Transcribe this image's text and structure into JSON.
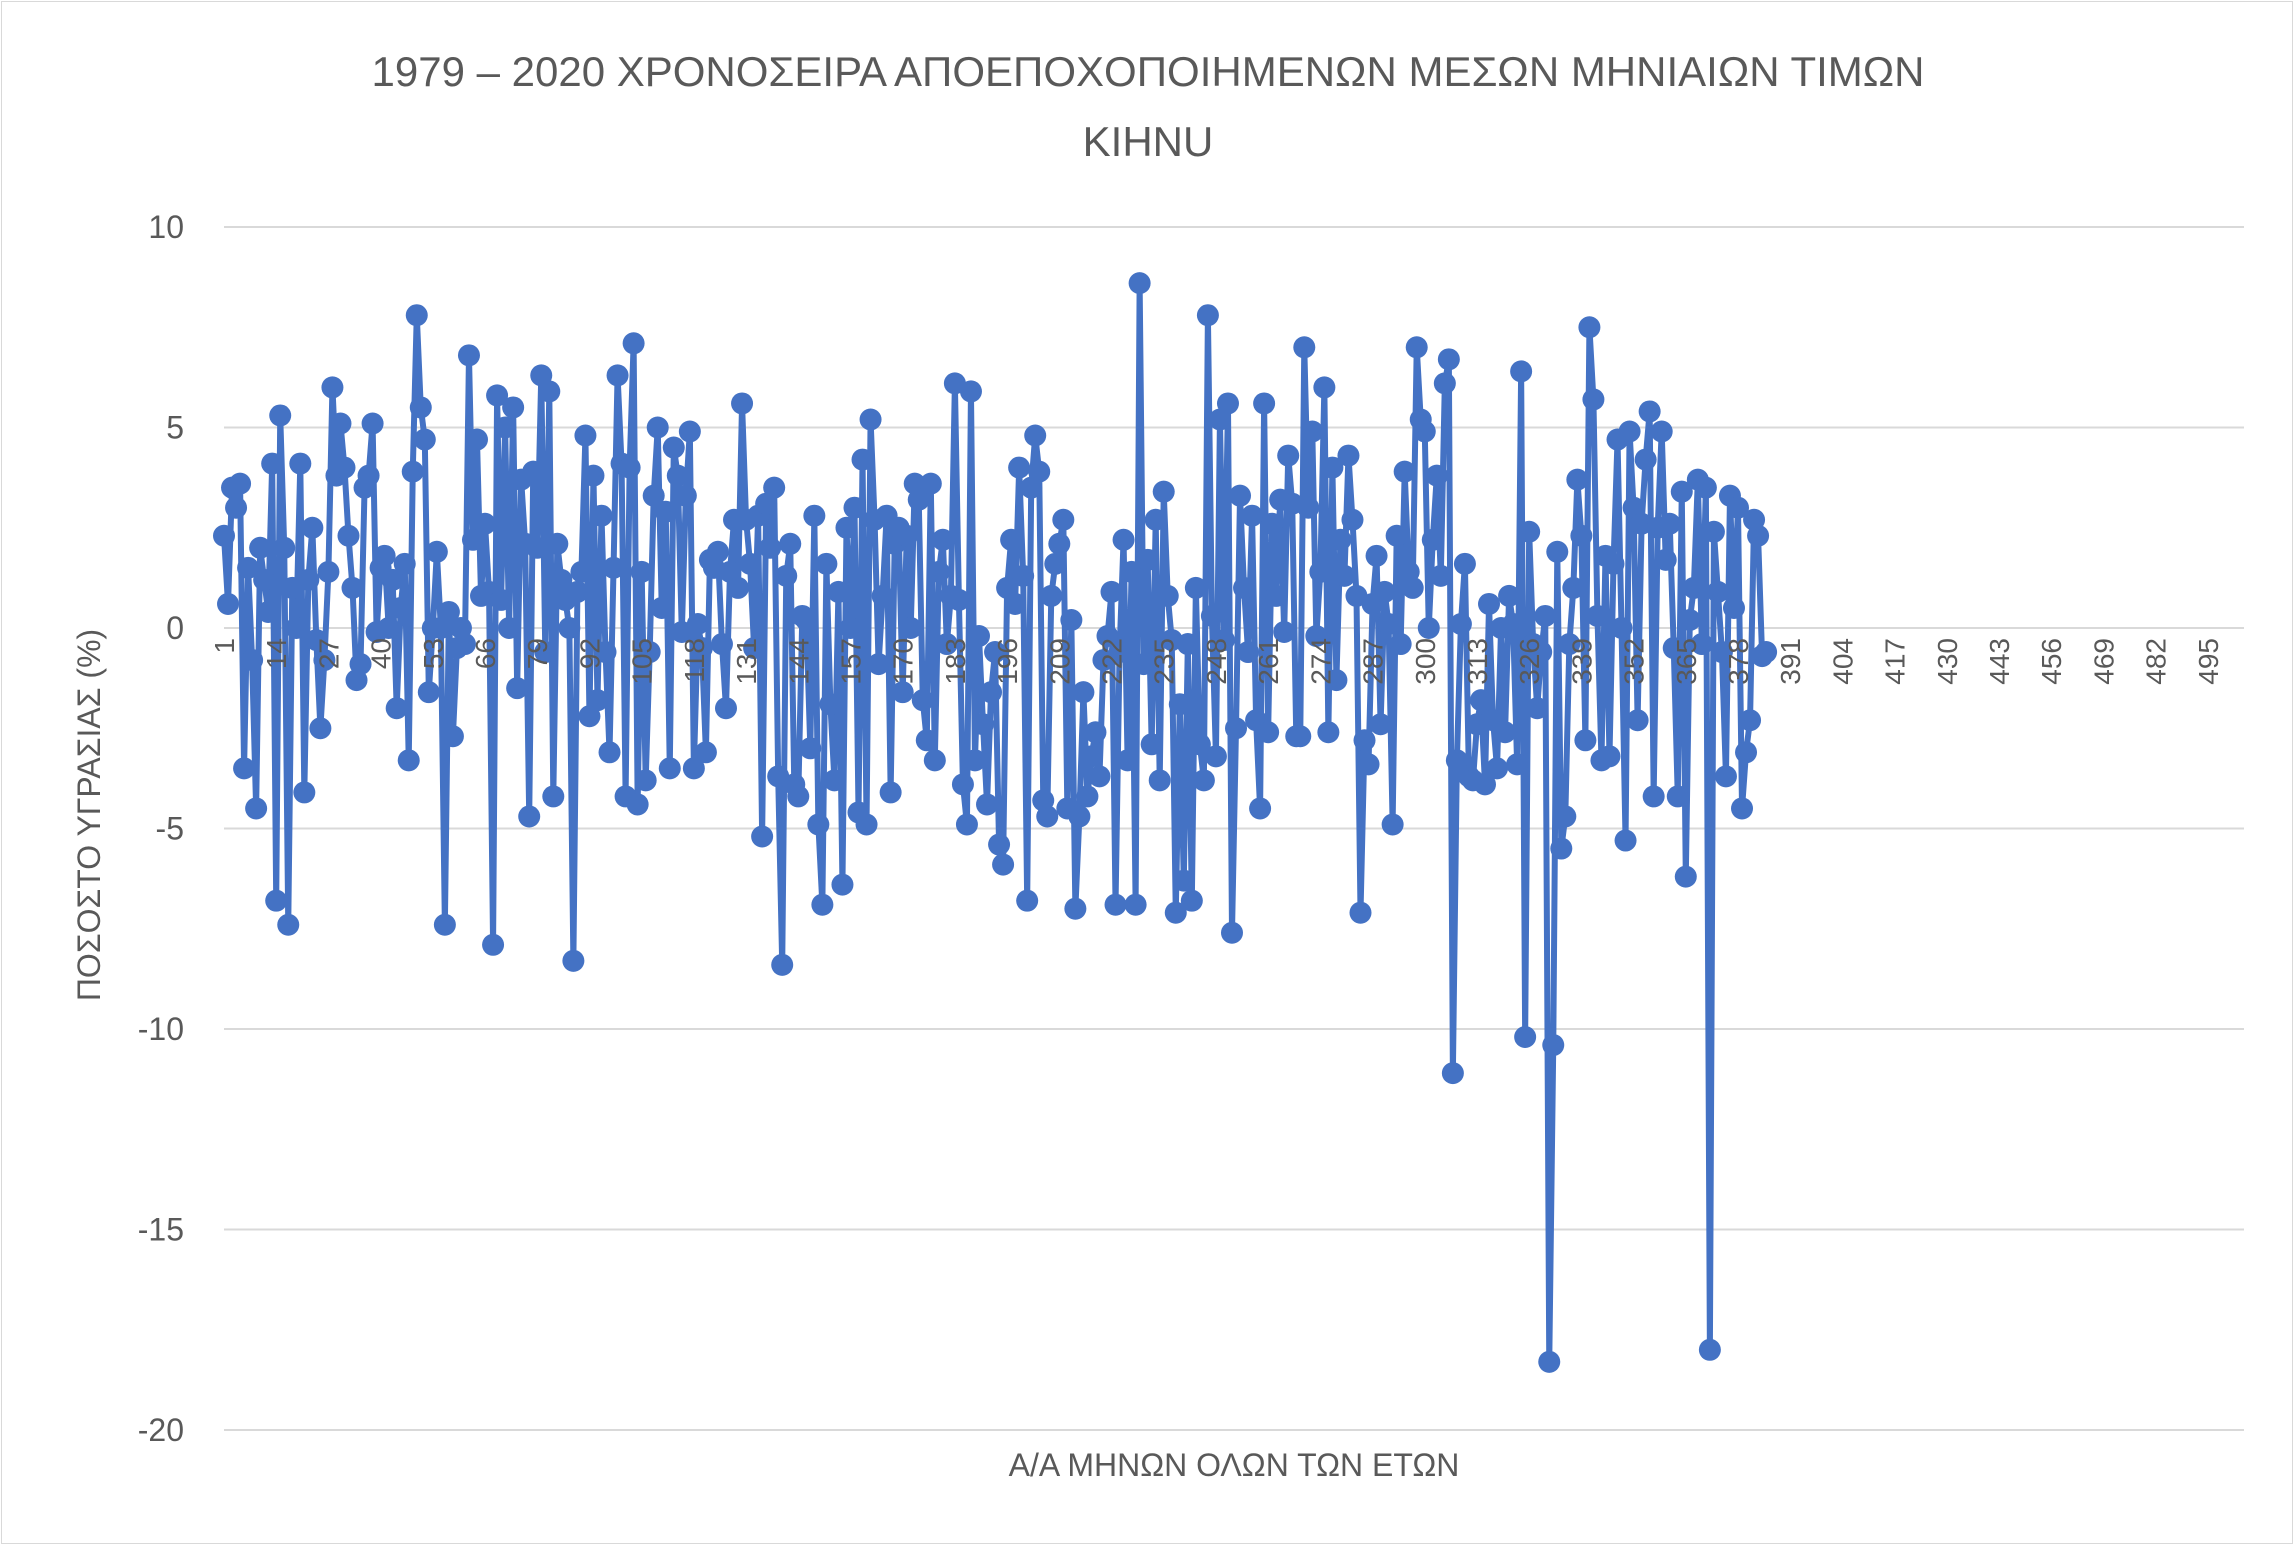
{
  "chart_data": {
    "type": "line",
    "title_lines": [
      "1979 – 2020 ΧΡΟΝΟΣΕΙΡΑ ΑΠΟΕΠΟΧΟΠΟΙΗΜΕΝΩΝ ΜΕΣΩΝ ΜΗΝΙΑΙΩΝ ΤΙΜΩΝ",
      "ΚΙΗΝU"
    ],
    "xlabel": "Α/Α ΜΗΝΩΝ ΟΛΩΝ ΤΩΝ ΕΤΩΝ",
    "ylabel": "ΠΟΣΟΣΤΟ ΥΓΡΑΣΙΑΣ (%)",
    "ylim": [
      -20,
      10
    ],
    "yticks": [
      10,
      5,
      0,
      -5,
      -10,
      -15,
      -20
    ],
    "ytick_labels": [
      "10",
      "5",
      "0",
      "-5",
      "-10",
      "-15",
      "-20"
    ],
    "xlim": [
      1,
      504
    ],
    "xticks": [
      1,
      14,
      27,
      40,
      53,
      66,
      79,
      92,
      105,
      118,
      131,
      144,
      157,
      170,
      183,
      196,
      209,
      222,
      235,
      248,
      261,
      274,
      287,
      300,
      313,
      326,
      339,
      352,
      365,
      378,
      391,
      404,
      417,
      430,
      443,
      456,
      469,
      482,
      495
    ],
    "xtick_labels": [
      "1",
      "14",
      "27",
      "40",
      "53",
      "66",
      "79",
      "92",
      "105",
      "118",
      "131",
      "144",
      "157",
      "170",
      "183",
      "196",
      "209",
      "222",
      "235",
      "248",
      "261",
      "274",
      "287",
      "300",
      "313",
      "326",
      "339",
      "352",
      "365",
      "378",
      "391",
      "404",
      "417",
      "430",
      "443",
      "456",
      "469",
      "482",
      "495"
    ],
    "grid": "horizontal",
    "legend": "none",
    "series_color": "#4472C4",
    "values": [
      2.3,
      0.6,
      3.5,
      3.0,
      3.6,
      -3.5,
      1.5,
      -0.8,
      -4.5,
      2.0,
      1.2,
      0.4,
      4.1,
      -6.8,
      5.3,
      2.0,
      -7.4,
      1.0,
      0.0,
      4.1,
      -4.1,
      1.2,
      2.5,
      -0.3,
      -2.5,
      -0.8,
      1.4,
      6.0,
      3.8,
      5.1,
      4.0,
      2.3,
      1.0,
      -1.3,
      -0.9,
      3.5,
      3.8,
      5.1,
      -0.1,
      1.5,
      1.8,
      0.0,
      1.2,
      -2.0,
      0.5,
      1.6,
      -3.3,
      3.9,
      7.8,
      5.5,
      4.7,
      -1.6,
      0.0,
      1.9,
      0.0,
      -7.4,
      0.4,
      -2.7,
      -0.5,
      0.0,
      -0.4,
      6.8,
      2.2,
      4.7,
      0.8,
      2.6,
      0.9,
      -7.9,
      5.8,
      0.7,
      5.0,
      0.0,
      5.5,
      -1.5,
      3.7,
      2.1,
      -4.7,
      3.9,
      2.0,
      6.3,
      -0.6,
      5.9,
      -4.2,
      2.1,
      1.2,
      0.7,
      0.0,
      -8.3,
      0.9,
      1.4,
      4.8,
      -2.2,
      3.8,
      -1.8,
      2.8,
      -0.6,
      -3.1,
      1.5,
      6.3,
      4.1,
      -4.2,
      4.0,
      7.1,
      -4.4,
      1.4,
      -3.8,
      -0.6,
      3.3,
      5.0,
      0.5,
      2.9,
      -3.5,
      4.5,
      3.8,
      -0.1,
      3.3,
      4.9,
      -3.5,
      0.1,
      -0.5,
      -3.1,
      1.7,
      1.5,
      1.9,
      -0.4,
      -2.0,
      1.4,
      2.7,
      1.0,
      5.6,
      2.7,
      1.6,
      -0.5,
      2.8,
      -5.2,
      3.1,
      2.0,
      3.5,
      -3.7,
      -8.4,
      1.3,
      2.1,
      -3.9,
      -4.2,
      0.3,
      0.2,
      -3.0,
      2.8,
      -4.9,
      -6.9,
      1.6,
      -1.9,
      -3.8,
      0.9,
      -6.4,
      2.5,
      0.0,
      3.0,
      -4.6,
      4.2,
      -4.9,
      5.2,
      2.7,
      -0.9,
      0.8,
      2.8,
      -4.1,
      2.1,
      2.5,
      -1.6,
      2.3,
      0.0,
      3.6,
      3.2,
      -1.8,
      -2.8,
      3.6,
      -3.3,
      1.4,
      2.2,
      -0.4,
      0.8,
      6.1,
      0.7,
      -3.9,
      -4.9,
      5.9,
      -3.3,
      -0.2,
      -2.4,
      -4.4,
      -1.6,
      -0.6,
      -5.4,
      -5.9,
      1.0,
      2.2,
      0.6,
      4.0,
      1.3,
      -6.8,
      3.5,
      4.8,
      3.9,
      -4.3,
      -4.7,
      0.8,
      1.6,
      2.1,
      2.7,
      -4.5,
      0.2,
      -7.0,
      -4.7,
      -1.6,
      -4.2,
      -3.2,
      -2.6,
      -3.7,
      -0.8,
      -0.2,
      0.9,
      -6.9,
      -0.6,
      2.2,
      -3.3,
      1.4,
      -6.9,
      8.6,
      -0.9,
      1.7,
      -2.9,
      2.7,
      -3.8,
      3.4,
      0.8,
      -0.3,
      -7.1,
      -1.9,
      -6.3,
      -0.4,
      -6.8,
      1.0,
      -2.9,
      -3.8,
      7.8,
      0.3,
      -3.2,
      5.2,
      -0.3,
      5.6,
      -7.6,
      -2.5,
      3.3,
      1.0,
      -0.6,
      2.8,
      -2.3,
      -4.5,
      5.6,
      -2.6,
      2.6,
      0.8,
      3.2,
      -0.1,
      4.3,
      3.1,
      -2.7,
      -2.7,
      7.0,
      3.0,
      4.9,
      -0.2,
      1.4,
      6.0,
      -2.6,
      4.0,
      -1.3,
      2.2,
      1.3,
      4.3,
      2.7,
      0.8,
      -7.1,
      -2.8,
      -3.4,
      0.6,
      1.8,
      -2.4,
      0.9,
      0.1,
      -4.9,
      2.3,
      -0.4,
      3.9,
      1.4,
      1.0,
      7.0,
      5.2,
      4.9,
      0.0,
      2.2,
      3.8,
      1.3,
      6.1,
      6.7,
      -11.1,
      -3.3,
      0.1,
      1.6,
      -3.7,
      -3.8,
      -2.4,
      -1.8,
      -3.9,
      0.6,
      -2.3,
      -3.5,
      0.0,
      -2.6,
      0.8,
      0.1,
      -3.4,
      6.4,
      -10.2,
      2.4,
      -0.4,
      -2.0,
      -0.6,
      0.3,
      -18.3,
      -10.4,
      1.9,
      -5.5,
      -4.7,
      -0.4,
      1.0,
      3.7,
      2.3,
      -2.8,
      7.5,
      5.7,
      0.3,
      -3.3,
      1.8,
      -3.2,
      1.6,
      4.7,
      0.0,
      -5.3,
      4.9,
      3.0,
      -2.3,
      2.6,
      4.2,
      5.4,
      -4.2,
      2.5,
      4.9,
      1.7,
      2.6,
      -0.5,
      -4.2,
      3.4,
      -6.2,
      0.2,
      1.0,
      3.7,
      -0.4,
      3.5,
      -18.0,
      2.4,
      0.9,
      -0.6,
      -3.7,
      3.3,
      0.5,
      3.0,
      -4.5,
      -3.1,
      -2.3,
      2.7,
      2.3,
      -0.7,
      -0.6
    ]
  }
}
